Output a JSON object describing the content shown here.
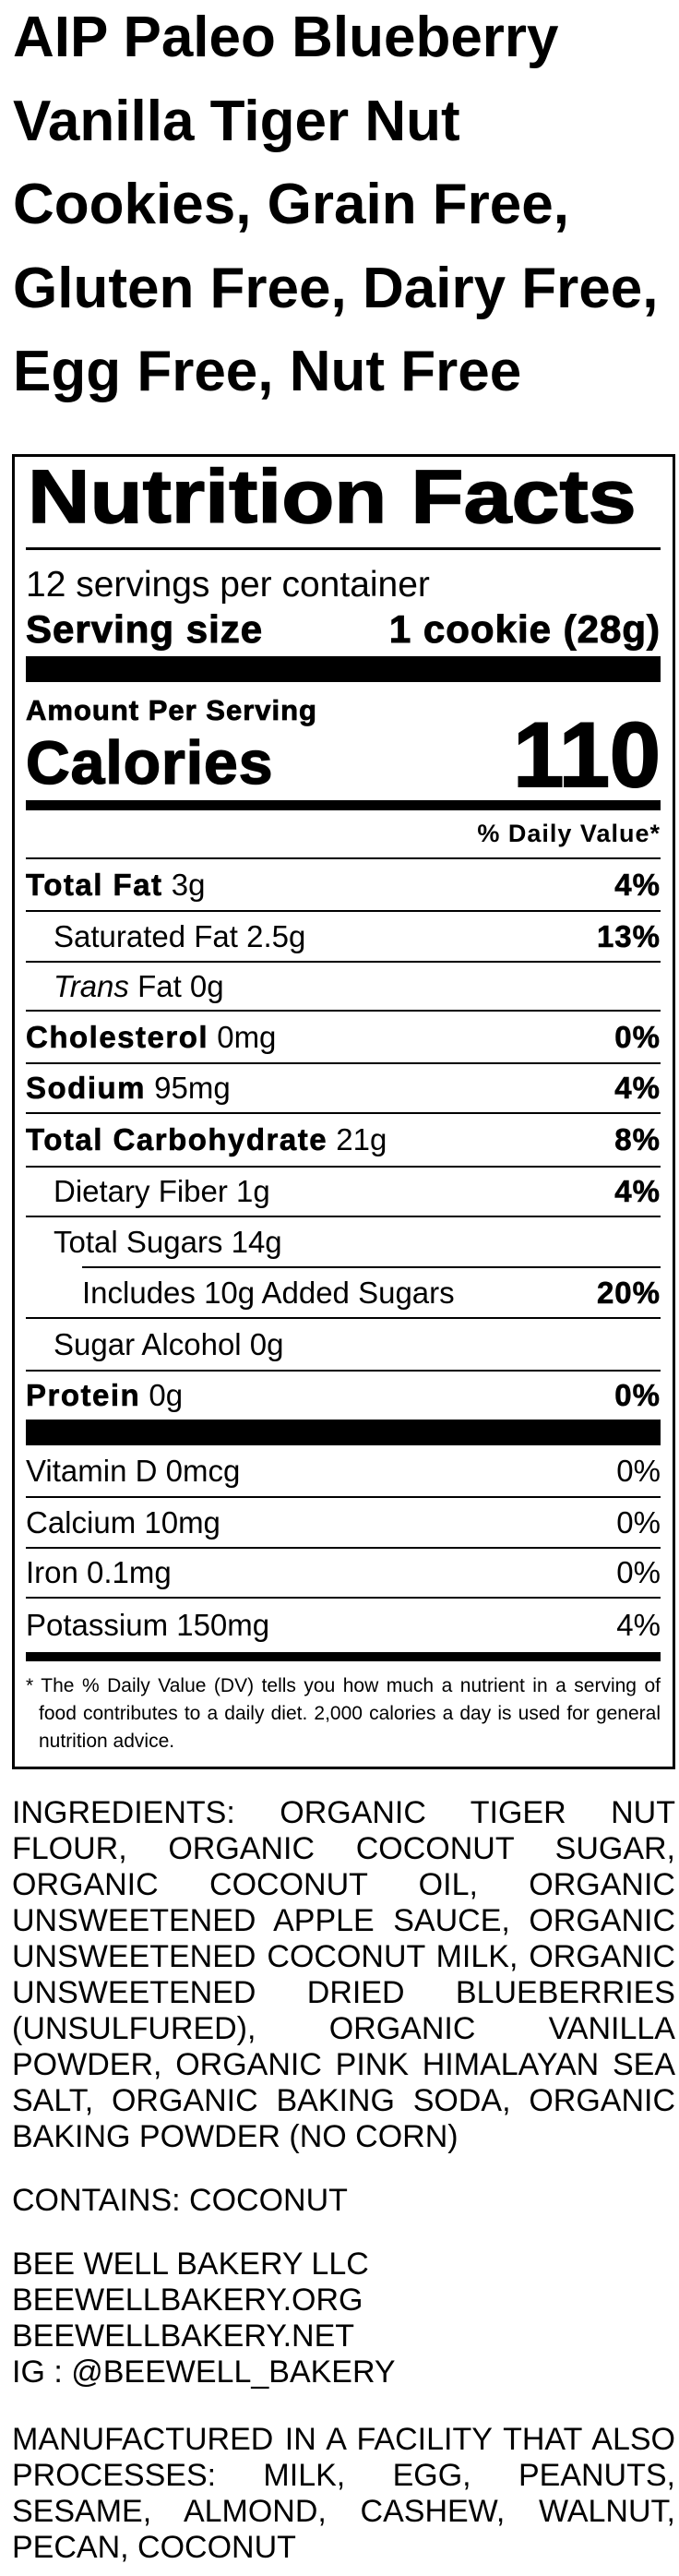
{
  "title_lines": [
    "AIP Paleo Blueberry",
    "Vanilla Tiger Nut",
    "Cookies, Grain Free,",
    "Gluten Free, Dairy Free,",
    "Egg Free, Nut Free"
  ],
  "nutrition": {
    "heading": "Nutrition Facts",
    "servings_per_container": "12 servings per container",
    "serving_size_label": "Serving size",
    "serving_size_value": "1 cookie (28g)",
    "amount_per_serving": "Amount Per Serving",
    "calories_label": "Calories",
    "calories_value": "110",
    "daily_value_header": "% Daily Value*",
    "rows": [
      {
        "label": "Total Fat",
        "amount": "3g",
        "dv": "4%",
        "indent": 0
      },
      {
        "label": "",
        "amount": "Saturated Fat 2.5g",
        "dv": "13%",
        "indent": 1
      },
      {
        "label": "",
        "italic": "Trans",
        "amount": "Fat 0g",
        "dv": "",
        "indent": 1
      },
      {
        "label": "Cholesterol",
        "amount": "0mg",
        "dv": "0%",
        "indent": 0
      },
      {
        "label": "Sodium",
        "amount": "95mg",
        "dv": "4%",
        "indent": 0
      },
      {
        "label": "Total Carbohydrate",
        "amount": "21g",
        "dv": "8%",
        "indent": 0
      },
      {
        "label": "",
        "amount": "Dietary Fiber 1g",
        "dv": "4%",
        "indent": 1
      },
      {
        "label": "",
        "amount": "Total Sugars 14g",
        "dv": "",
        "indent": 1
      },
      {
        "label": "",
        "amount": "Includes 10g Added Sugars",
        "dv": "20%",
        "indent": 2
      },
      {
        "label": "",
        "amount": "Sugar Alcohol 0g",
        "dv": "",
        "indent": 1
      },
      {
        "label": "Protein",
        "amount": "0g",
        "dv": "0%",
        "indent": 0
      }
    ],
    "vitamins": [
      {
        "amount": "Vitamin D 0mcg",
        "dv": "0%"
      },
      {
        "amount": "Calcium 10mg",
        "dv": "0%"
      },
      {
        "amount": "Iron 0.1mg",
        "dv": "0%"
      },
      {
        "amount": "Potassium 150mg",
        "dv": "4%"
      }
    ],
    "footnote": "* The % Daily Value (DV) tells you how much a nutrient in a serving of food contributes to a daily diet. 2,000 calories a day is used for general nutrition advice."
  },
  "ingredients_lines": [
    "INGREDIENTS: ORGANIC TIGER NUT",
    "FLOUR, ORGANIC COCONUT SUGAR,",
    "ORGANIC COCONUT OIL, ORGANIC",
    "UNSWEETENED APPLE SAUCE, ORGANIC",
    "UNSWEETENED COCONUT MILK, ORGANIC",
    "UNSWEETENED DRIED BLUEBERRIES",
    "(UNSULFURED), ORGANIC VANILLA",
    "POWDER, ORGANIC PINK HIMALAYAN SEA",
    "SALT, ORGANIC BAKING SODA, ORGANIC",
    "BAKING POWDER (NO CORN)"
  ],
  "contains": "CONTAINS: COCONUT",
  "company_lines": [
    "BEE WELL BAKERY LLC",
    "BEEWELLBAKERY.ORG",
    "BEEWELLBAKERY.NET",
    "IG : @BEEWELL_BAKERY"
  ],
  "facility_lines": [
    "MANUFACTURED IN A FACILITY THAT ALSO",
    "PROCESSES: MILK, EGG, PEANUTS,",
    "SESAME, ALMOND, CASHEW, WALNUT,",
    "PECAN, COCONUT"
  ]
}
